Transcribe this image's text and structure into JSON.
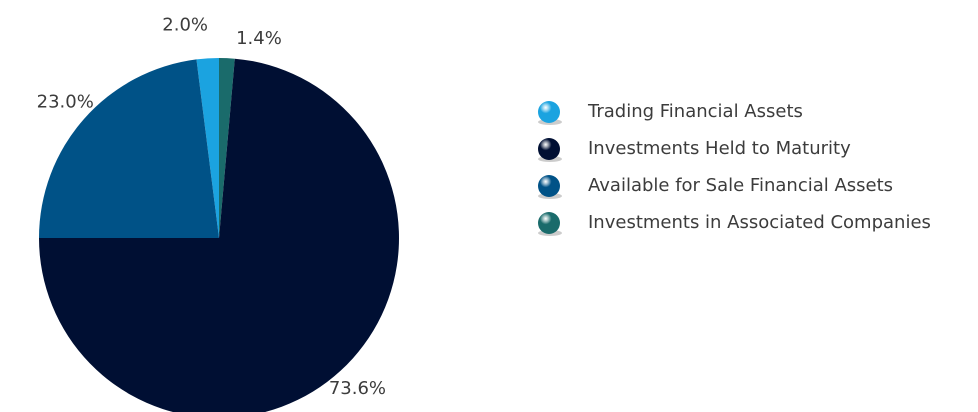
{
  "chart_data": {
    "type": "pie",
    "categories": [
      "Trading Financial Assets",
      "Investments Held to Maturity",
      "Available for Sale Financial Assets",
      "Investments in Associated Companies"
    ],
    "values": [
      2.0,
      73.6,
      23.0,
      1.4
    ],
    "value_labels": [
      "2.0%",
      "73.6%",
      "23.0%",
      "1.4%"
    ],
    "colors": [
      "#1ba3e0",
      "#000f33",
      "#005287",
      "#1a6b6b"
    ]
  }
}
